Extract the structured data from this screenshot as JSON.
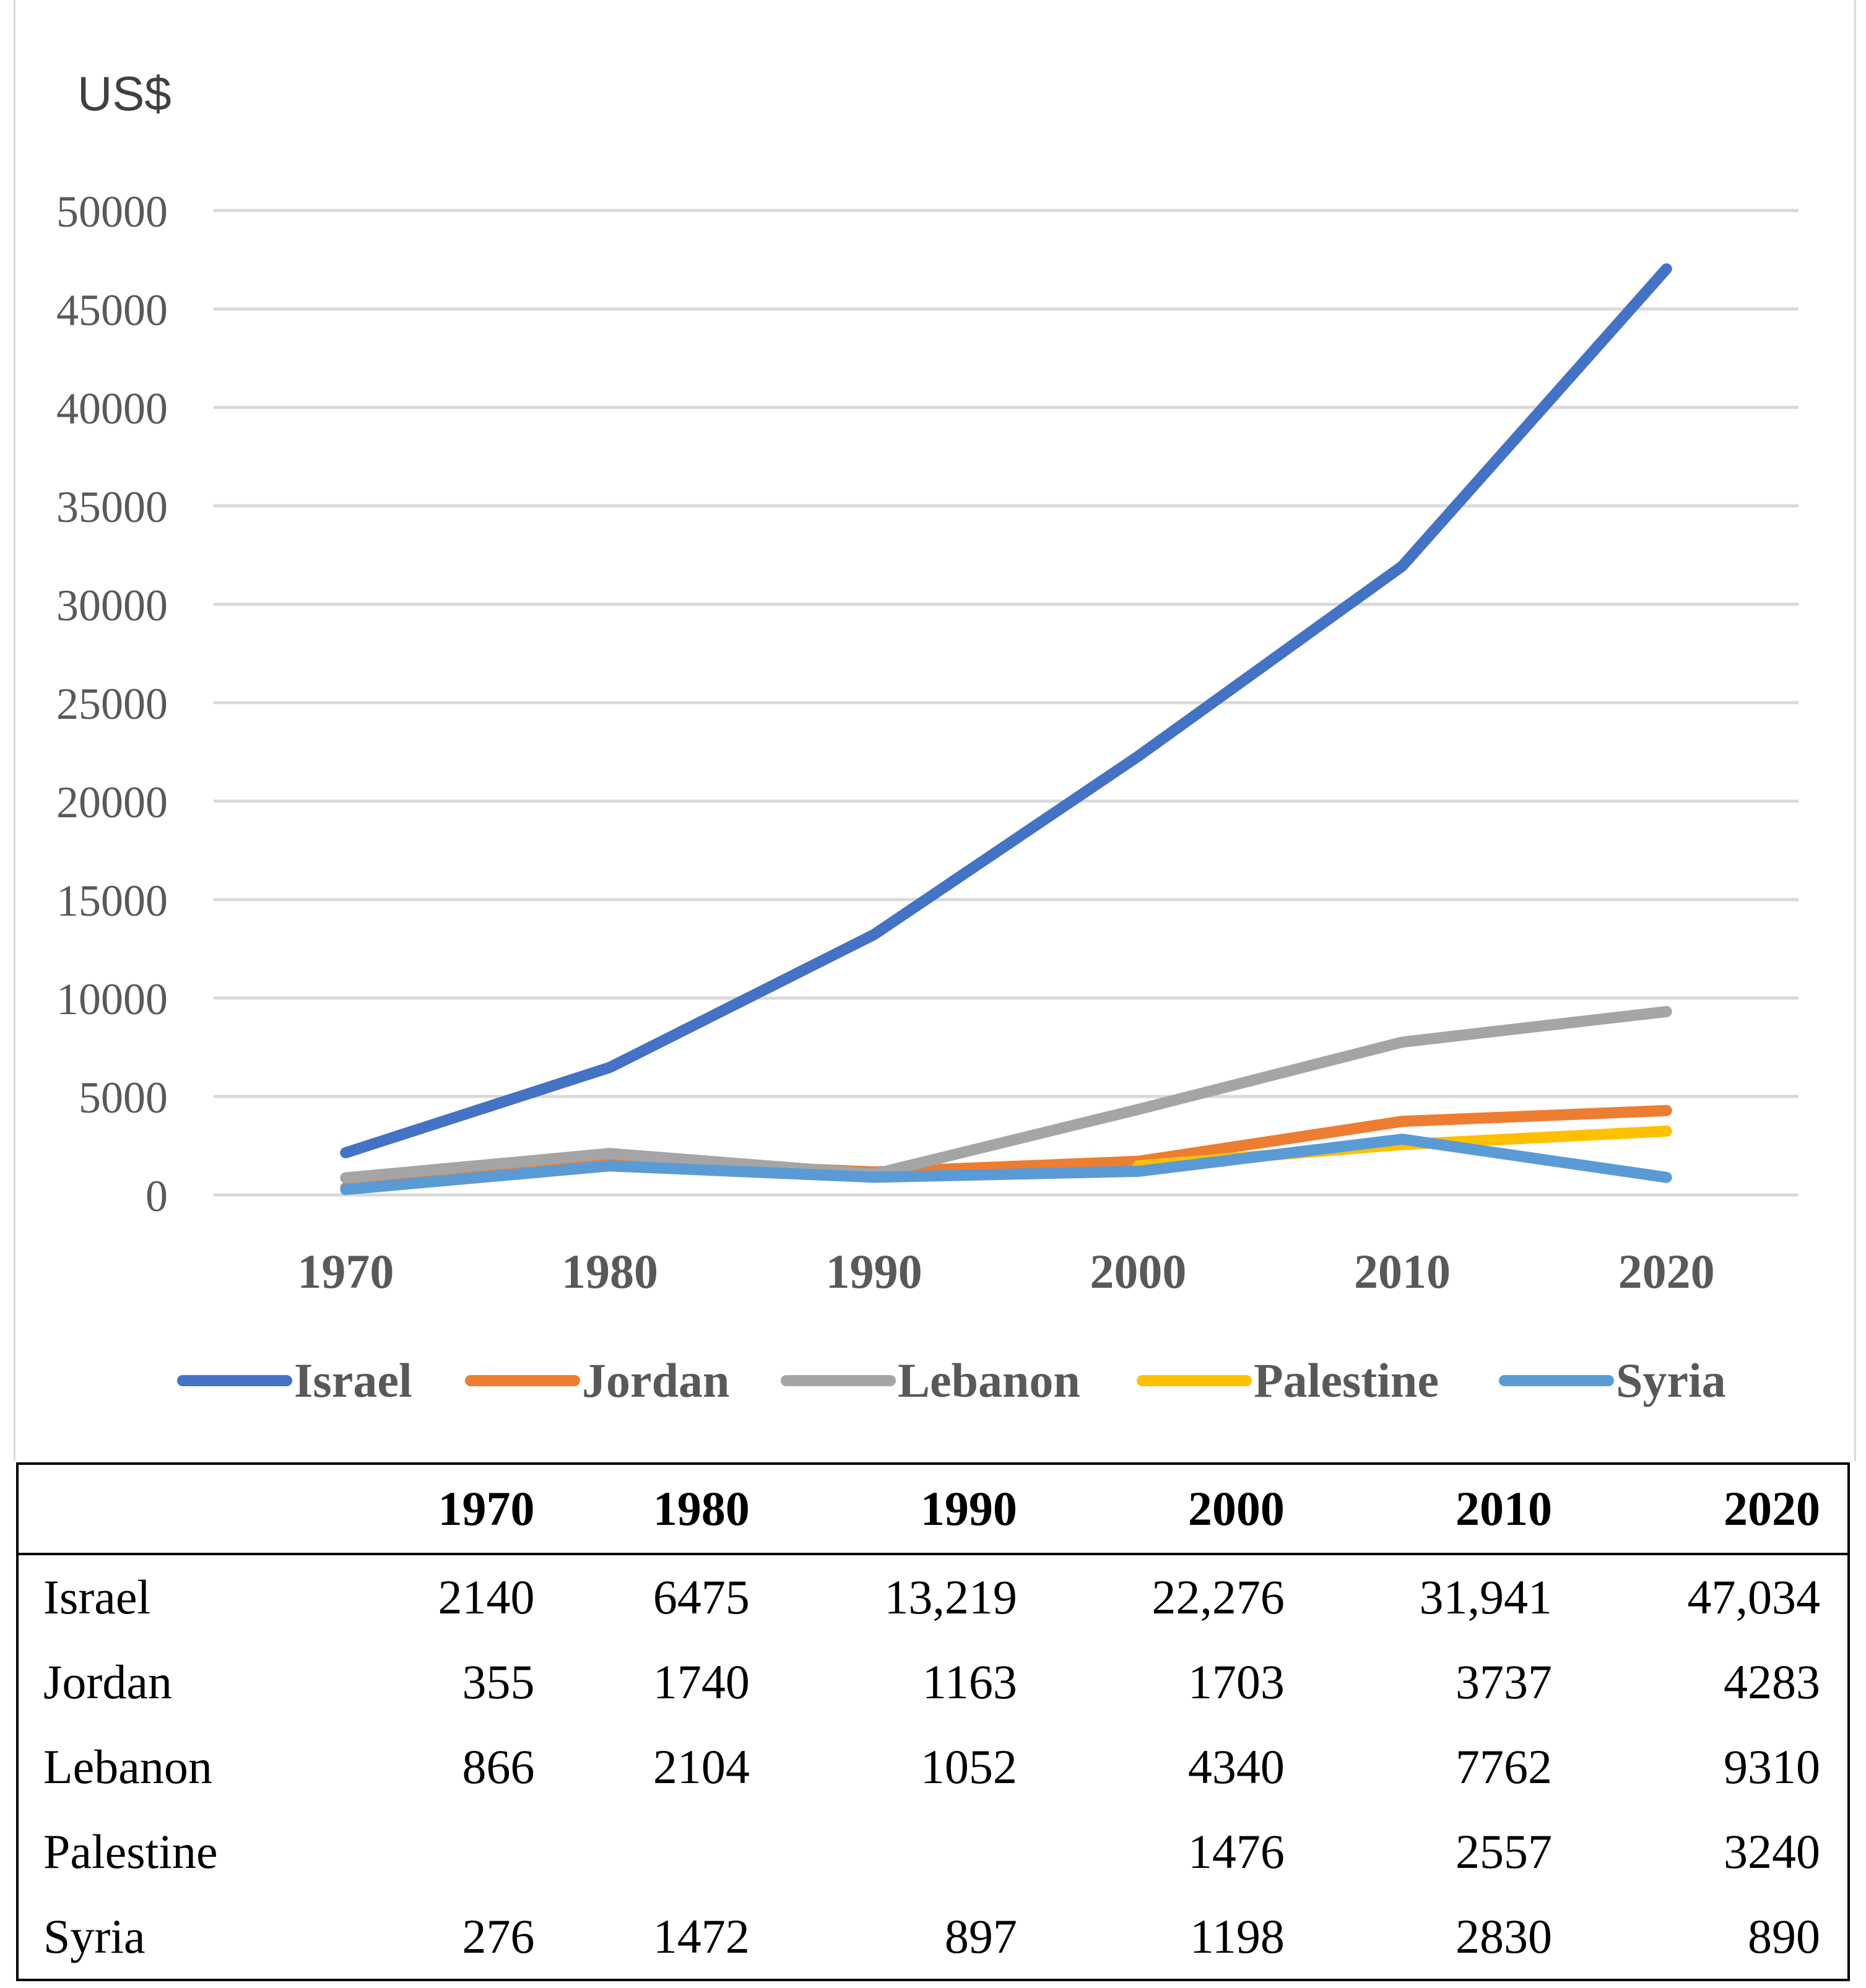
{
  "chart_data": {
    "type": "line",
    "title": "",
    "ylabel": "US$",
    "xlabel": "",
    "categories": [
      "1970",
      "1980",
      "1990",
      "2000",
      "2010",
      "2020"
    ],
    "ylim": [
      0,
      50000
    ],
    "yticks": [
      "0",
      "5000",
      "10000",
      "15000",
      "20000",
      "25000",
      "30000",
      "35000",
      "40000",
      "45000",
      "50000"
    ],
    "grid": true,
    "legend_position": "bottom",
    "series": [
      {
        "name": "Israel",
        "color": "#4472C4",
        "values": [
          2140,
          6475,
          13219,
          22276,
          31941,
          47034
        ]
      },
      {
        "name": "Jordan",
        "color": "#ED7D31",
        "values": [
          355,
          1740,
          1163,
          1703,
          3737,
          4283
        ]
      },
      {
        "name": "Lebanon",
        "color": "#A5A5A5",
        "values": [
          866,
          2104,
          1052,
          4340,
          7762,
          9310
        ]
      },
      {
        "name": "Palestine",
        "color": "#FFC000",
        "values": [
          null,
          null,
          null,
          1476,
          2557,
          3240
        ]
      },
      {
        "name": "Syria",
        "color": "#5B9BD5",
        "values": [
          276,
          1472,
          897,
          1198,
          2830,
          890
        ]
      }
    ]
  },
  "table": {
    "header": [
      "1970",
      "1980",
      "1990",
      "2000",
      "2010",
      "2020"
    ],
    "rows": [
      {
        "label": "Israel",
        "cells": [
          "2140",
          "6475",
          "13,219",
          "22,276",
          "31,941",
          "47,034"
        ]
      },
      {
        "label": "Jordan",
        "cells": [
          "355",
          "1740",
          "1163",
          "1703",
          "3737",
          "4283"
        ]
      },
      {
        "label": "Lebanon",
        "cells": [
          "866",
          "2104",
          "1052",
          "4340",
          "7762",
          "9310"
        ]
      },
      {
        "label": "Palestine",
        "cells": [
          "",
          "",
          "",
          "1476",
          "2557",
          "3240"
        ]
      },
      {
        "label": "Syria",
        "cells": [
          "276",
          "1472",
          "897",
          "1198",
          "2830",
          "890"
        ]
      }
    ]
  }
}
